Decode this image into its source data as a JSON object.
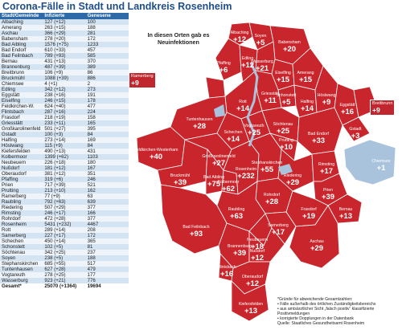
{
  "title": "Corona-Fälle in Stadt und Landkreis Rosenheim",
  "table": {
    "headers": [
      "Stadt/Gemeinde",
      "Infizierte",
      "Genesene"
    ],
    "rows": [
      [
        "Albaching",
        "127 (+12)",
        "100"
      ],
      [
        "Amerang",
        "263 (+15)",
        "188"
      ],
      [
        "Aschau",
        "366 (+29)",
        "281"
      ],
      [
        "Babensham",
        "278 (+20)",
        "172"
      ],
      [
        "Bad Aibling",
        "1576 (+75)",
        "1233"
      ],
      [
        "Bad Endorf",
        "610 (+33)",
        "457"
      ],
      [
        "Bad Feilnbach",
        "789 (+93)",
        "585"
      ],
      [
        "Bernau",
        "431 (+13)",
        "370"
      ],
      [
        "Brannenburg",
        "487 (+39)",
        "389"
      ],
      [
        "Breitbrunn",
        "106 (+9)",
        "86"
      ],
      [
        "Bruckmühl",
        "1088 (+39)",
        "886"
      ],
      [
        "Chiemsee",
        "4 (+1)",
        "2"
      ],
      [
        "Edling",
        "342 (+12)",
        "273"
      ],
      [
        "Eggstätt",
        "238 (+16)",
        "191"
      ],
      [
        "Eiselfing",
        "246 (+15)",
        "178"
      ],
      [
        "Feldkirchen-W.",
        "624 (+40)",
        "477"
      ],
      [
        "Flintsbach",
        "287 (+16)",
        "224"
      ],
      [
        "Frasdorf",
        "218 (+19)",
        "158"
      ],
      [
        "Griesstätt",
        "233 (+11)",
        "165"
      ],
      [
        "Großkarolinenfeld",
        "501 (+27)",
        "395"
      ],
      [
        "Gstadt",
        "100 (+3)",
        "84"
      ],
      [
        "Halfing",
        "273 (+14)",
        "169"
      ],
      [
        "Höslwang",
        "115 (+9)",
        "84"
      ],
      [
        "Kiefersfelden",
        "490 (+13)",
        "431"
      ],
      [
        "Kolbermoor",
        "1399 (+62)",
        "1103"
      ],
      [
        "Neubeuern",
        "226 (+18)",
        "180"
      ],
      [
        "Nußdorf",
        "181 (+12)",
        "167"
      ],
      [
        "Oberaudorf",
        "381 (+12)",
        "351"
      ],
      [
        "Pfaffing",
        "319 (+6)",
        "246"
      ],
      [
        "Prien",
        "717 (+39)",
        "521"
      ],
      [
        "Prutting",
        "213 (+10)",
        "162"
      ],
      [
        "Ramerberg",
        "77 (+9)",
        "63"
      ],
      [
        "Raubling",
        "792 (+63)",
        "639"
      ],
      [
        "Riedering",
        "507 (+29)",
        "377"
      ],
      [
        "Rimsting",
        "246 (+17)",
        "166"
      ],
      [
        "Rohrdorf",
        "472 (+28)",
        "377"
      ],
      [
        "Rosenheim",
        "5431 (+232)",
        "4467"
      ],
      [
        "Rott",
        "289 (+14)",
        "208"
      ],
      [
        "Samerberg",
        "227 (+17)",
        "172"
      ],
      [
        "Schechen",
        "450 (+14)",
        "365"
      ],
      [
        "Schonstett",
        "102 (+5)",
        "81"
      ],
      [
        "Söchtenau",
        "342 (+25)",
        "237"
      ],
      [
        "Soyen",
        "238 (+5)",
        "188"
      ],
      [
        "Stephanskirchen",
        "685 (+55)",
        "517"
      ],
      [
        "Tuntenhausen",
        "627 (+28)",
        "479"
      ],
      [
        "Vogtareuth",
        "278 (+25)",
        "177"
      ],
      [
        "Wasserburg",
        "923 (+21)",
        "776"
      ]
    ],
    "total": [
      "Gesamt*",
      "25070 (+1364)",
      "19694"
    ]
  },
  "callout": "In diesen Orten gab es Neuinfektionen",
  "map_labels": [
    {
      "name": "Albaching",
      "value": "+12"
    },
    {
      "name": "Soyen",
      "value": "+5"
    },
    {
      "name": "Babensham",
      "value": "+20"
    },
    {
      "name": "Wasserburg",
      "value": "+21"
    },
    {
      "name": "Edling",
      "value": "+12"
    },
    {
      "name": "Pfaffing",
      "value": "+6"
    },
    {
      "name": "Eiselfing",
      "value": "+15"
    },
    {
      "name": "Amerang",
      "value": "+15"
    },
    {
      "name": "Schonstett",
      "value": "+5"
    },
    {
      "name": "Griesstätt",
      "value": "+11"
    },
    {
      "name": "Rott",
      "value": "+14"
    },
    {
      "name": "Halfing",
      "value": "+14"
    },
    {
      "name": "Höslwang",
      "value": "+9"
    },
    {
      "name": "Eggstätt",
      "value": "+16"
    },
    {
      "name": "Vogtareuth",
      "value": "+25"
    },
    {
      "name": "Schechen",
      "value": "+14"
    },
    {
      "name": "Söchtenau",
      "value": "+25"
    },
    {
      "name": "Tuntenhausen",
      "value": "+28"
    },
    {
      "name": "Bad Endorf",
      "value": "+33"
    },
    {
      "name": "Gstadt",
      "value": "+3"
    },
    {
      "name": "Chiemsee",
      "value": "+1"
    },
    {
      "name": "Feldkirchen-Westerham",
      "value": "+40"
    },
    {
      "name": "Großkarolinenfeld",
      "value": "+27"
    },
    {
      "name": "Bruckmühl",
      "value": "+39"
    },
    {
      "name": "Bad Aibling",
      "value": "+75"
    },
    {
      "name": "Kolbermoor",
      "value": "+62"
    },
    {
      "name": "Rosenheim",
      "value": "+232"
    },
    {
      "name": "Stephanskirchen",
      "value": "+55"
    },
    {
      "name": "Prutting",
      "value": "+10"
    },
    {
      "name": "Riedering",
      "value": "+29"
    },
    {
      "name": "Rimsting",
      "value": "+17"
    },
    {
      "name": "Prien",
      "value": "+39"
    },
    {
      "name": "Bernau",
      "value": "+13"
    },
    {
      "name": "Rohrdorf",
      "value": "+28"
    },
    {
      "name": "Raubling",
      "value": "+63"
    },
    {
      "name": "Bad Feilnbach",
      "value": "+93"
    },
    {
      "name": "Neubeuern",
      "value": "+18"
    },
    {
      "name": "Frasdorf",
      "value": "+19"
    },
    {
      "name": "Samerberg",
      "value": "+17"
    },
    {
      "name": "Brannenburg",
      "value": "+39"
    },
    {
      "name": "Nußdorf",
      "value": "+12"
    },
    {
      "name": "Flintsbach",
      "value": "+16"
    },
    {
      "name": "Aschau",
      "value": "+29"
    },
    {
      "name": "Oberaudorf",
      "value": "+12"
    },
    {
      "name": "Kiefersfelden",
      "value": "+13"
    },
    {
      "name": "Ramerberg",
      "value": "+9"
    },
    {
      "name": "Breitbrunn",
      "value": "+9"
    }
  ],
  "footnote": [
    "*Gründe für abweichende Gesamtzahlen:",
    "• Fälle außerhalb des örtlichen Zuständigkeitsbereichs",
    "• aus amtsärztlicher Sicht „falsch positiv“ klassifizierte Positivmeldungen",
    "• korrigierte Dopplungen in der Datenbank",
    "Quelle: Staatliches Gesundheitsamt Rosenheim"
  ],
  "colors": {
    "region": "#c8262c",
    "border": "#ffffff",
    "title": "#1f4e8a",
    "header": "#2e6aa8",
    "lake": "#9fb8cf"
  }
}
